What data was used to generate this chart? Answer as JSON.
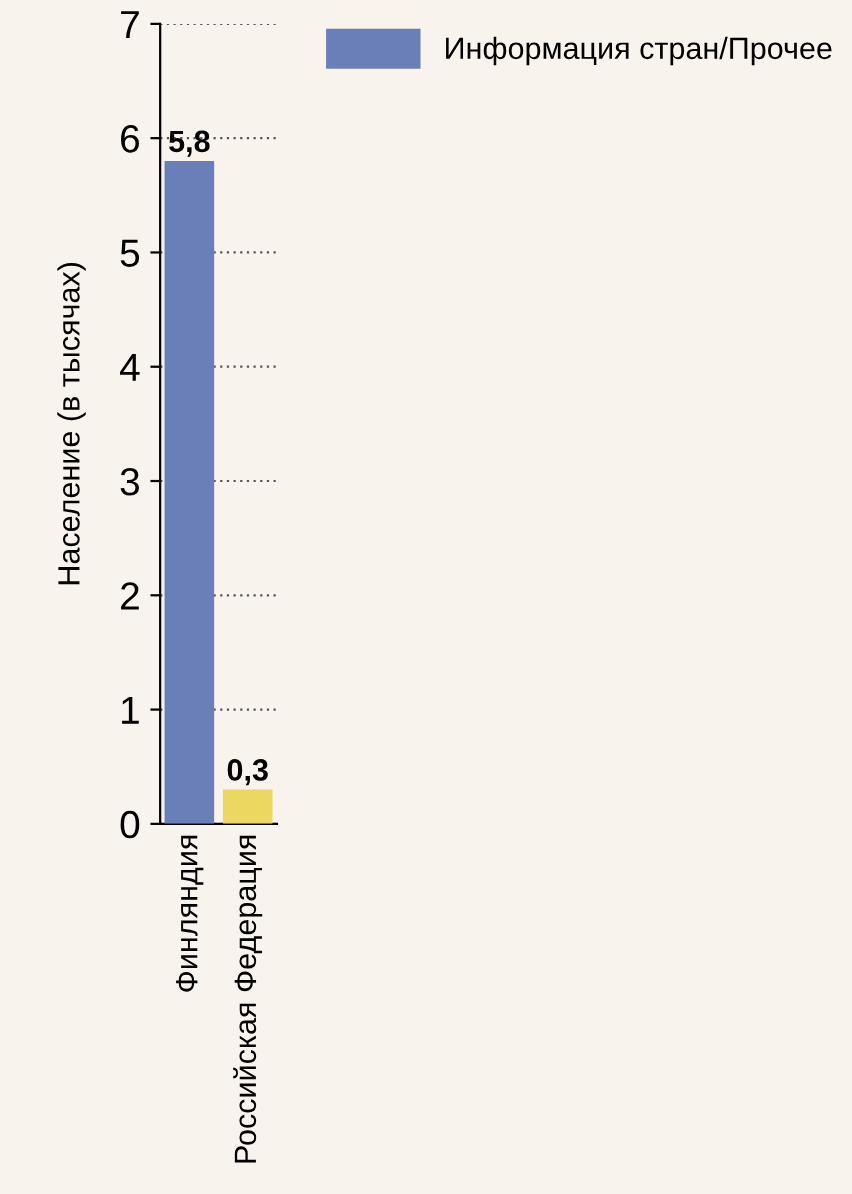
{
  "chart_data": {
    "type": "bar",
    "ylabel": "Население (в тысячах)",
    "categories": [
      "Финляндия",
      "Российская Федерация"
    ],
    "series": [
      {
        "name": "Информация стран/Прочее",
        "color": "#6a7fb8",
        "values": [
          5.8,
          null
        ],
        "value_labels": [
          "5,8",
          null
        ]
      },
      {
        "color": "#ecd760",
        "values": [
          null,
          0.3
        ],
        "value_labels": [
          null,
          "0,3"
        ]
      }
    ],
    "ylim": [
      0,
      7
    ],
    "yticks": [
      0,
      1,
      2,
      3,
      4,
      5,
      6,
      7
    ],
    "grid": "y",
    "legend": "top right"
  }
}
